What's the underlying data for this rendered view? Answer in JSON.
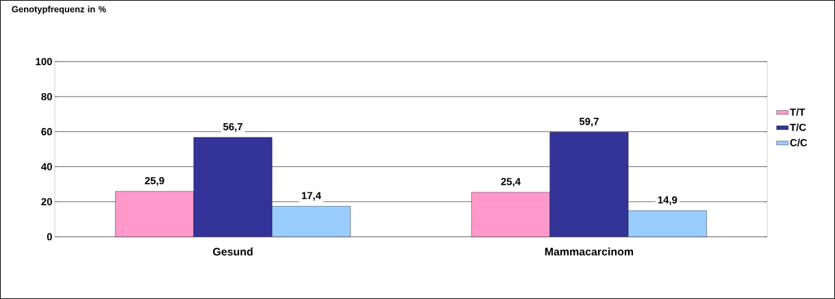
{
  "chart_data": {
    "type": "bar",
    "ylabel": "Genotypfrequenz in %",
    "categories": [
      "Gesund",
      "Mammacarcinom"
    ],
    "series": [
      {
        "name": "T/T",
        "color": "#ff99cc",
        "values": [
          25.9,
          25.4
        ],
        "value_labels": [
          "25,9",
          "25,4"
        ]
      },
      {
        "name": "T/C",
        "color": "#333399",
        "values": [
          56.7,
          59.7
        ],
        "value_labels": [
          "56,7",
          "59,7"
        ]
      },
      {
        "name": "C/C",
        "color": "#99ccff",
        "values": [
          17.4,
          14.9
        ],
        "value_labels": [
          "17,4",
          "14,9"
        ]
      }
    ],
    "ylim": [
      0,
      100
    ],
    "yticks": [
      0,
      20,
      40,
      60,
      80,
      100
    ],
    "grid": "y",
    "legend": "right"
  }
}
